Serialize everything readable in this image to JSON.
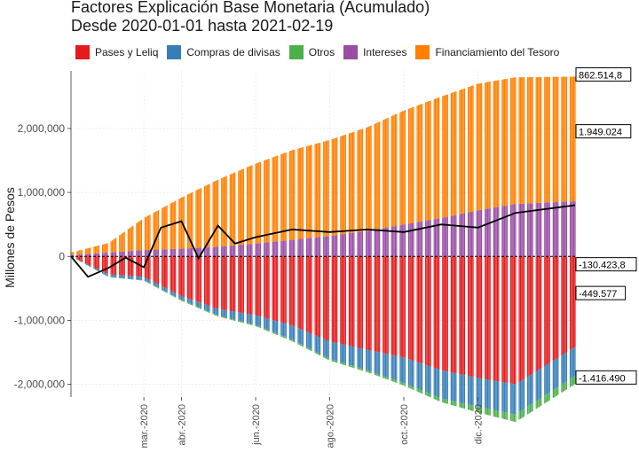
{
  "title_line1": "Factores Explicación Base Monetaria (Acumulado)",
  "title_line2": "Desde 2020-01-01 hasta 2021-02-19",
  "legend": [
    {
      "label": "Pases y Leliq",
      "color": "#e41a1c"
    },
    {
      "label": "Compras de divisas",
      "color": "#377eb8"
    },
    {
      "label": "Otros",
      "color": "#4daf4a"
    },
    {
      "label": "Intereses",
      "color": "#984ea3"
    },
    {
      "label": "Financiamiento del Tesoro",
      "color": "#ff7f00"
    }
  ],
  "callouts": [
    "862.514,8",
    "1.949.024",
    "-130.423,8",
    "-449.577",
    "-1.416.490"
  ],
  "chart_data": {
    "type": "bar",
    "stacked": true,
    "title": "Factores Explicación Base Monetaria (Acumulado)",
    "subtitle": "Desde 2020-01-01 hasta 2021-02-19",
    "xlabel": "",
    "ylabel": "Millones de Pesos",
    "ylim": [
      -2200000,
      2900000
    ],
    "yticks": [
      -2000000,
      -1000000,
      0,
      1000000,
      2000000
    ],
    "ytick_labels": [
      "-2,000,000",
      "-1,000,000",
      "0",
      "1,000,000",
      "2,000,000"
    ],
    "xticks": [
      "2020-03-01",
      "2020-04-01",
      "2020-06-01",
      "2020-08-01",
      "2020-10-01",
      "2020-12-01"
    ],
    "xtick_labels": [
      "mar.-2020",
      "abr.-2020",
      "jun.-2020",
      "ago.-2020",
      "oct.-2020",
      "dic.-2020"
    ],
    "x_range": [
      "2020-01-01",
      "2021-02-19"
    ],
    "grid": true,
    "legend_position": "top",
    "series": [
      {
        "name": "Pases y Leliq",
        "color": "#e41a1c",
        "x": [
          "2020-01-01",
          "2020-02-01",
          "2020-03-01",
          "2020-04-01",
          "2020-05-01",
          "2020-06-01",
          "2020-07-01",
          "2020-08-01",
          "2020-09-01",
          "2020-10-01",
          "2020-11-01",
          "2020-12-01",
          "2021-01-01",
          "2021-02-19"
        ],
        "values": [
          0,
          -280000,
          -320000,
          -620000,
          -820000,
          -920000,
          -1080000,
          -1330000,
          -1460000,
          -1580000,
          -1780000,
          -1900000,
          -2000000,
          -1416490
        ]
      },
      {
        "name": "Compras de divisas",
        "color": "#377eb8",
        "x": [
          "2020-01-01",
          "2020-02-01",
          "2020-03-01",
          "2020-04-01",
          "2020-05-01",
          "2020-06-01",
          "2020-07-01",
          "2020-08-01",
          "2020-09-01",
          "2020-10-01",
          "2020-11-01",
          "2020-12-01",
          "2021-01-01",
          "2021-02-19"
        ],
        "values": [
          0,
          -40000,
          -50000,
          -60000,
          -100000,
          -150000,
          -220000,
          -270000,
          -320000,
          -400000,
          -440000,
          -450000,
          -470000,
          -449577
        ]
      },
      {
        "name": "Otros",
        "color": "#4daf4a",
        "x": [
          "2020-01-01",
          "2020-02-01",
          "2020-03-01",
          "2020-04-01",
          "2020-05-01",
          "2020-06-01",
          "2020-07-01",
          "2020-08-01",
          "2020-09-01",
          "2020-10-01",
          "2020-11-01",
          "2020-12-01",
          "2021-01-01",
          "2021-02-19"
        ],
        "values": [
          0,
          -5000,
          -10000,
          -15000,
          -20000,
          -20000,
          -25000,
          -30000,
          -30000,
          -40000,
          -60000,
          -90000,
          -120000,
          -130423.8
        ]
      },
      {
        "name": "Intereses",
        "color": "#984ea3",
        "x": [
          "2020-01-01",
          "2020-02-01",
          "2020-03-01",
          "2020-04-01",
          "2020-05-01",
          "2020-06-01",
          "2020-07-01",
          "2020-08-01",
          "2020-09-01",
          "2020-10-01",
          "2020-11-01",
          "2020-12-01",
          "2021-01-01",
          "2021-02-19"
        ],
        "values": [
          20000,
          60000,
          100000,
          120000,
          150000,
          200000,
          260000,
          320000,
          400000,
          500000,
          600000,
          720000,
          820000,
          862514.8
        ]
      },
      {
        "name": "Financiamiento del Tesoro",
        "color": "#ff7f00",
        "x": [
          "2020-01-01",
          "2020-02-01",
          "2020-03-01",
          "2020-04-01",
          "2020-05-01",
          "2020-06-01",
          "2020-07-01",
          "2020-08-01",
          "2020-09-01",
          "2020-10-01",
          "2020-11-01",
          "2020-12-01",
          "2021-01-01",
          "2021-02-19"
        ],
        "values": [
          40000,
          150000,
          500000,
          800000,
          1050000,
          1250000,
          1400000,
          1500000,
          1620000,
          1780000,
          1900000,
          1980000,
          1980000,
          1949024
        ]
      },
      {
        "name": "Total",
        "color": "#000000",
        "kind": "line",
        "x": [
          "2020-01-01",
          "2020-01-15",
          "2020-02-01",
          "2020-02-15",
          "2020-03-01",
          "2020-03-15",
          "2020-04-01",
          "2020-04-15",
          "2020-05-01",
          "2020-05-15",
          "2020-06-01",
          "2020-07-01",
          "2020-08-01",
          "2020-09-01",
          "2020-10-01",
          "2020-11-01",
          "2020-12-01",
          "2021-01-01",
          "2021-02-19"
        ],
        "values": [
          0,
          -320000,
          -180000,
          -20000,
          -170000,
          450000,
          550000,
          -30000,
          480000,
          200000,
          300000,
          420000,
          380000,
          420000,
          380000,
          500000,
          450000,
          680000,
          800000
        ]
      }
    ]
  }
}
